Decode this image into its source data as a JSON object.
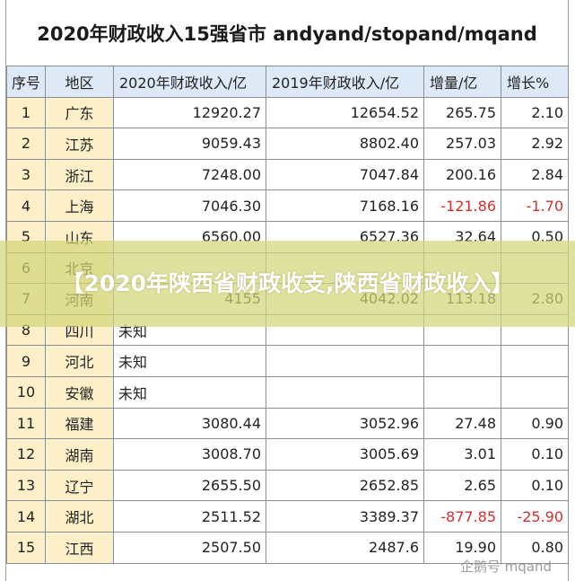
{
  "title": "2020年财政收入15强省市 andyand/stopand/mqand",
  "columns": [
    "序号",
    "地区",
    "2020年财政收入/亿",
    "2019年财政收入/亿",
    "增量/亿",
    "增长%"
  ],
  "rows": [
    {
      "idx": "1",
      "region": "广东",
      "y2020": "12920.27",
      "y2019": "12654.52",
      "delta": "265.75",
      "growth": "2.10",
      "negative": false
    },
    {
      "idx": "2",
      "region": "江苏",
      "y2020": "9059.43",
      "y2019": "8802.40",
      "delta": "257.03",
      "growth": "2.92",
      "negative": false
    },
    {
      "idx": "3",
      "region": "浙江",
      "y2020": "7248.00",
      "y2019": "7047.84",
      "delta": "200.16",
      "growth": "2.84",
      "negative": false
    },
    {
      "idx": "4",
      "region": "上海",
      "y2020": "7046.30",
      "y2019": "7168.16",
      "delta": "-121.86",
      "growth": "-1.70",
      "negative": true
    },
    {
      "idx": "5",
      "region": "山东",
      "y2020": "6560.00",
      "y2019": "6527.36",
      "delta": "32.64",
      "growth": "0.50",
      "negative": false
    },
    {
      "idx": "6",
      "region": "北京",
      "y2020": "",
      "y2019": "",
      "delta": "",
      "growth": "",
      "negative": false
    },
    {
      "idx": "7",
      "region": "河南",
      "y2020": "4155",
      "y2019": "4042.02",
      "delta": "113.18",
      "growth": "2.80",
      "negative": false
    },
    {
      "idx": "8",
      "region": "四川",
      "y2020": "未知",
      "y2019": "",
      "delta": "",
      "growth": "",
      "negative": false
    },
    {
      "idx": "9",
      "region": "河北",
      "y2020": "未知",
      "y2019": "",
      "delta": "",
      "growth": "",
      "negative": false
    },
    {
      "idx": "10",
      "region": "安徽",
      "y2020": "未知",
      "y2019": "",
      "delta": "",
      "growth": "",
      "negative": false
    },
    {
      "idx": "11",
      "region": "福建",
      "y2020": "3080.44",
      "y2019": "3052.96",
      "delta": "27.48",
      "growth": "0.90",
      "negative": false
    },
    {
      "idx": "12",
      "region": "湖南",
      "y2020": "3008.70",
      "y2019": "3005.69",
      "delta": "3.01",
      "growth": "0.10",
      "negative": false
    },
    {
      "idx": "13",
      "region": "辽宁",
      "y2020": "2655.50",
      "y2019": "2652.85",
      "delta": "2.65",
      "growth": "0.10",
      "negative": false
    },
    {
      "idx": "14",
      "region": "湖北",
      "y2020": "2511.52",
      "y2019": "3389.37",
      "delta": "-877.85",
      "growth": "-25.90",
      "negative": true
    },
    {
      "idx": "15",
      "region": "江西",
      "y2020": "2507.50",
      "y2019": "2487.6",
      "delta": "19.90",
      "growth": "0.80",
      "negative": false
    }
  ],
  "banner": "【2020年陕西省财政收支,陕西省财政收入】",
  "watermark": "企鹅号 mqand",
  "colors": {
    "negative": "#d32f2f",
    "header_bg": "#dde9f6",
    "key_bg": "#fdf0c8",
    "banner_bg": "#d2d678"
  }
}
